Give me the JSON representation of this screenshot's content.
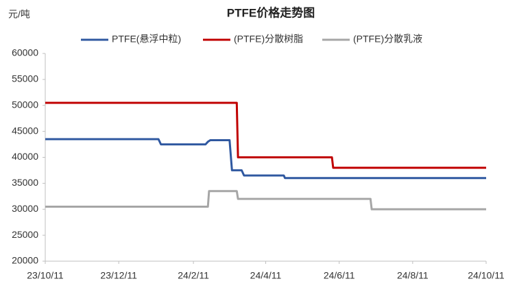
{
  "chart_data": {
    "type": "line",
    "title": "PTFE价格走势图",
    "y_label": "元/吨",
    "series": [
      {
        "name": "PTFE(悬浮中粒)",
        "color": "#2f58a0",
        "x": [
          "23/10/11",
          "24/1/13",
          "24/1/15",
          "24/2/21",
          "24/2/23",
          "24/2/25",
          "24/3/12",
          "24/3/14",
          "24/3/22",
          "24/3/24",
          "24/4/26",
          "24/4/27",
          "24/10/11"
        ],
        "values": [
          43500,
          43500,
          42500,
          42500,
          43000,
          43300,
          43300,
          37500,
          37500,
          36500,
          36500,
          36000,
          36000
        ]
      },
      {
        "name": "(PTFE)分散树脂",
        "color": "#c00000",
        "x": [
          "23/10/11",
          "24/3/18",
          "24/3/19",
          "24/6/5",
          "24/6/6",
          "24/10/11"
        ],
        "values": [
          50500,
          50500,
          40000,
          40000,
          38000,
          38000
        ]
      },
      {
        "name": "(PTFE)分散乳液",
        "color": "#a6a6a6",
        "x": [
          "23/10/11",
          "24/2/23",
          "24/2/24",
          "24/3/18",
          "24/3/19",
          "24/7/7",
          "24/7/8",
          "24/10/11"
        ],
        "values": [
          30500,
          30500,
          33500,
          33500,
          32000,
          32000,
          30000,
          30000
        ]
      }
    ],
    "xlim": [
      "23/10/11",
      "24/10/11"
    ],
    "xticks": [
      "23/10/11",
      "23/12/11",
      "24/2/11",
      "24/4/11",
      "24/6/11",
      "24/8/11",
      "24/10/11"
    ],
    "ylim": [
      20000,
      60000
    ],
    "yticks": [
      20000,
      25000,
      30000,
      35000,
      40000,
      45000,
      50000,
      55000,
      60000
    ],
    "grid": false,
    "legend": "top"
  }
}
